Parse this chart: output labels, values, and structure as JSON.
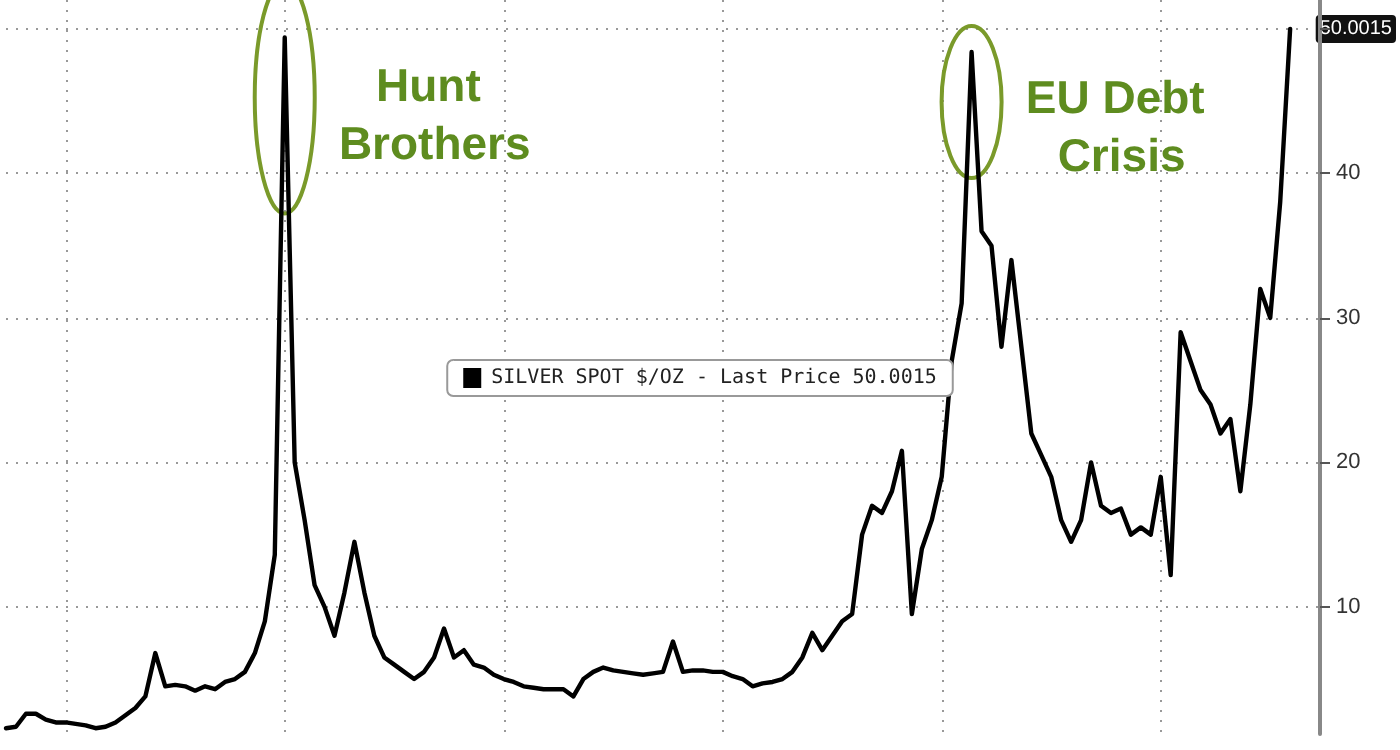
{
  "chart_data": {
    "type": "line",
    "categories": [
      null,
      null,
      null,
      null,
      null,
      null,
      null,
      null,
      null,
      null,
      null,
      null,
      null,
      null,
      null,
      null,
      null,
      null,
      null,
      null,
      null,
      null,
      null,
      null,
      null,
      null,
      null,
      null,
      null,
      null,
      null,
      null,
      null,
      null,
      null,
      null,
      null,
      null,
      null,
      null,
      null,
      null,
      null,
      null,
      null,
      null,
      null,
      null,
      null,
      null,
      null,
      null,
      null,
      null,
      null,
      null,
      null,
      null,
      null,
      null,
      null,
      null,
      null,
      null,
      null,
      null,
      null,
      null,
      null,
      null,
      null,
      null,
      null,
      null,
      null,
      null,
      null,
      null,
      null,
      null,
      null,
      null,
      null,
      null,
      null,
      null,
      null,
      null,
      null,
      null,
      null,
      null,
      null,
      null,
      null,
      null,
      null,
      null,
      null,
      null,
      null,
      null,
      null,
      null,
      null,
      null,
      null,
      null,
      null,
      null,
      null,
      null,
      null,
      null,
      null,
      null,
      null,
      null,
      null,
      null,
      null,
      null,
      null,
      null,
      null,
      null,
      null,
      null,
      null,
      null,
      null,
      null,
      null
    ],
    "series": [
      {
        "name": "SILVER SPOT $/OZ - Last Price 50.0015",
        "color": "#000000",
        "values": [
          1.6,
          1.7,
          2.6,
          2.6,
          2.2,
          2.0,
          2.0,
          1.9,
          1.8,
          1.6,
          1.7,
          2.0,
          2.5,
          3.0,
          3.8,
          6.8,
          4.5,
          4.6,
          4.5,
          4.2,
          4.5,
          4.3,
          4.8,
          5.0,
          5.5,
          6.8,
          9.0,
          13.6,
          49.4,
          20,
          16,
          11.5,
          10,
          8,
          11,
          14.5,
          11,
          8,
          6.5,
          6.0,
          5.5,
          5.0,
          5.5,
          6.5,
          8.5,
          6.5,
          7.0,
          6.0,
          5.8,
          5.3,
          5.0,
          4.8,
          4.5,
          4.4,
          4.3,
          4.3,
          4.3,
          3.8,
          5.0,
          5.5,
          5.8,
          5.6,
          5.5,
          5.4,
          5.3,
          5.4,
          5.5,
          7.6,
          5.5,
          5.6,
          5.6,
          5.5,
          5.5,
          5.2,
          5.0,
          4.5,
          4.7,
          4.8,
          5.0,
          5.5,
          6.5,
          8.2,
          7.0,
          8.0,
          9.0,
          9.5,
          15,
          17,
          16.5,
          18,
          20.8,
          9.5,
          14,
          16,
          19,
          27,
          31,
          48.4,
          36,
          35,
          28,
          34,
          28,
          22,
          20.5,
          19,
          16,
          14.5,
          16,
          20,
          17,
          16.5,
          16.8,
          15,
          15.5,
          15,
          19,
          12.2,
          29,
          27,
          25,
          24,
          22,
          23,
          18,
          24,
          32,
          30,
          38,
          50.0015,
          null,
          null,
          null
        ]
      }
    ],
    "ylim": [
      1.2,
      52
    ],
    "yticks": [
      10,
      20,
      30,
      40,
      {
        "value": 50,
        "label": null
      }
    ],
    "grid": true,
    "legend": "center",
    "marker": "none",
    "line_style": "solid",
    "annotations": [
      "Hunt Brothers",
      "EU Debt Crisis",
      "50.0015"
    ]
  }
}
